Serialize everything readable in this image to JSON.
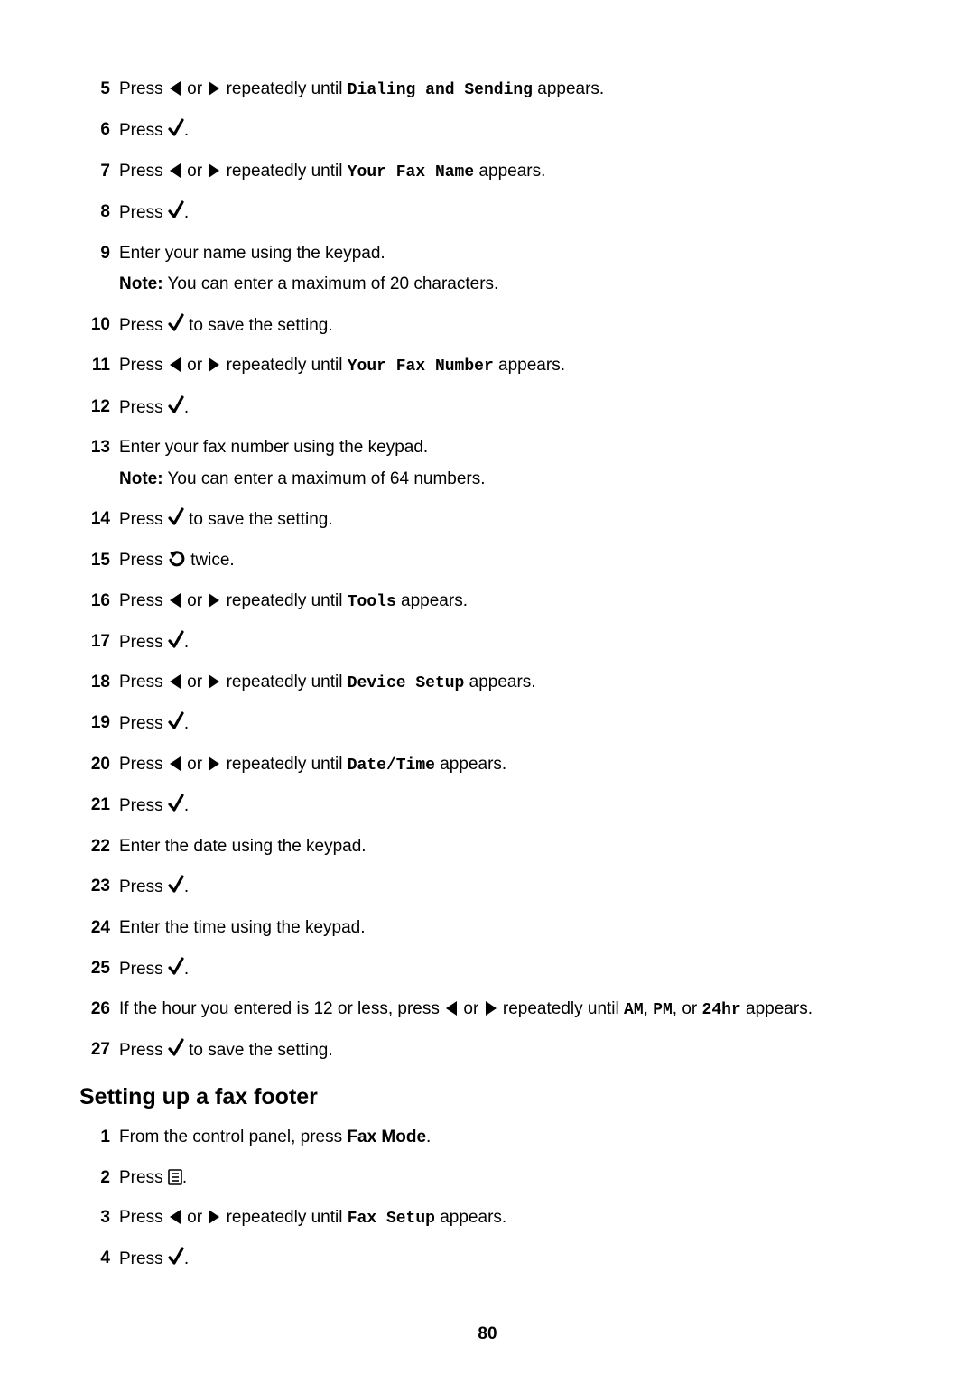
{
  "icons": {
    "left": "left-arrow-icon",
    "right": "right-arrow-icon",
    "check": "check-icon",
    "back": "back-arrow-icon",
    "menu": "menu-icon"
  },
  "text": {
    "press": "Press ",
    "or": " or ",
    "repeatedly_until": " repeatedly until ",
    "appears": " appears.",
    "period": ".",
    "to_save": " to save the setting.",
    "twice": " twice.",
    "note_label": "Note:"
  },
  "steps_a_start": 5,
  "steps_a": [
    {
      "type": "nav",
      "target": "Dialing and Sending"
    },
    {
      "type": "press_check"
    },
    {
      "type": "nav",
      "target": "Your Fax Name"
    },
    {
      "type": "press_check"
    },
    {
      "type": "text_note",
      "main": "Enter your name using the keypad.",
      "note": " You can enter a maximum of 20 characters."
    },
    {
      "type": "press_check_save"
    },
    {
      "type": "nav",
      "target": "Your Fax Number"
    },
    {
      "type": "press_check"
    },
    {
      "type": "text_note",
      "main": "Enter your fax number using the keypad.",
      "note": " You can enter a maximum of 64 numbers."
    },
    {
      "type": "press_check_save"
    },
    {
      "type": "press_back_twice"
    },
    {
      "type": "nav",
      "target": "Tools"
    },
    {
      "type": "press_check"
    },
    {
      "type": "nav",
      "target": "Device Setup"
    },
    {
      "type": "press_check"
    },
    {
      "type": "nav",
      "target": "Date/Time"
    },
    {
      "type": "press_check"
    },
    {
      "type": "text",
      "main": "Enter the date using the keypad."
    },
    {
      "type": "press_check"
    },
    {
      "type": "text",
      "main": "Enter the time using the keypad."
    },
    {
      "type": "press_check"
    },
    {
      "type": "nav3",
      "prefix": "If the hour you entered is 12 or less, press ",
      "t1": "AM",
      "t2": "PM",
      "t3": "24hr"
    },
    {
      "type": "press_check_save"
    }
  ],
  "section_b_title": "Setting up a fax footer",
  "steps_b_start": 1,
  "steps_b": [
    {
      "type": "text_bold_tail",
      "pre": "From the control panel, press ",
      "bold": "Fax Mode",
      "post": "."
    },
    {
      "type": "press_menu"
    },
    {
      "type": "nav",
      "target": "Fax Setup"
    },
    {
      "type": "press_check"
    }
  ],
  "page_number": "80"
}
